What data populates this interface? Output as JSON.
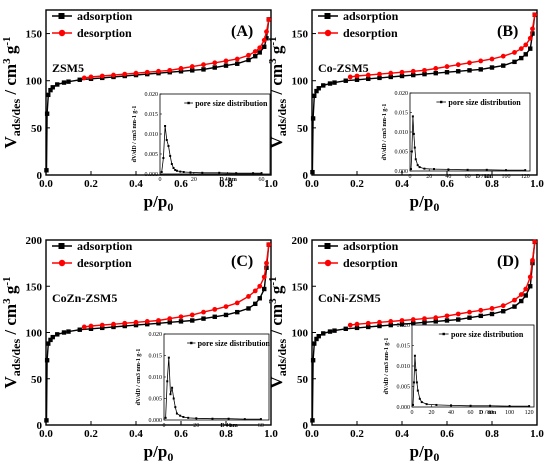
{
  "chart_data": [
    {
      "type": "line",
      "panel_label": "(A)",
      "sample": "ZSM5",
      "xlabel": "p/p0",
      "ylabel": "V ads/des / cm3 g-1",
      "xlim": [
        0,
        1.0
      ],
      "ylim": [
        0,
        175
      ],
      "xticks": [
        0.0,
        0.2,
        0.4,
        0.6,
        0.8,
        1.0
      ],
      "yticks": [
        0,
        50,
        100,
        150
      ],
      "legend": "top-left",
      "series": [
        {
          "name": "adsorption",
          "color": "#000000",
          "marker": "square",
          "x": [
            0.002,
            0.005,
            0.01,
            0.02,
            0.03,
            0.05,
            0.08,
            0.1,
            0.15,
            0.2,
            0.25,
            0.3,
            0.35,
            0.4,
            0.45,
            0.5,
            0.55,
            0.6,
            0.65,
            0.7,
            0.75,
            0.8,
            0.85,
            0.9,
            0.93,
            0.95,
            0.97,
            0.98,
            0.99
          ],
          "y": [
            5,
            65,
            85,
            90,
            93,
            96,
            98,
            99,
            101,
            102,
            103,
            104,
            105,
            106,
            107,
            108,
            109,
            110,
            111,
            112,
            114,
            116,
            118,
            122,
            126,
            130,
            136,
            145,
            165
          ]
        },
        {
          "name": "desorption",
          "color": "#ff0000",
          "marker": "circle",
          "x": [
            0.99,
            0.98,
            0.97,
            0.95,
            0.93,
            0.9,
            0.85,
            0.8,
            0.75,
            0.7,
            0.65,
            0.6,
            0.55,
            0.5,
            0.45,
            0.4,
            0.35,
            0.3,
            0.25,
            0.2,
            0.17
          ],
          "y": [
            165,
            152,
            143,
            135,
            131,
            127,
            123,
            121,
            119,
            117,
            115,
            113,
            111,
            110,
            109,
            108,
            107,
            106,
            105,
            104,
            103
          ]
        }
      ],
      "inset": {
        "legend": "pore size distribution",
        "xlabel": "D / nm",
        "ylabel": "dV/dD / cm3 nm-1 g-1",
        "xlim": [
          0,
          65
        ],
        "ylim": [
          0,
          0.02
        ],
        "xticks": [
          0,
          20,
          40,
          60
        ],
        "yticks": [
          0.0,
          0.005,
          0.01,
          0.015,
          0.02
        ],
        "x": [
          1,
          2,
          3,
          4,
          5,
          6,
          7,
          8,
          9,
          10,
          12,
          14,
          18,
          25,
          35,
          45,
          55,
          60
        ],
        "y": [
          0.0005,
          0.004,
          0.012,
          0.0085,
          0.007,
          0.0045,
          0.0025,
          0.0015,
          0.001,
          0.0008,
          0.0006,
          0.0005,
          0.0004,
          0.0003,
          0.0003,
          0.0002,
          0.0002,
          0.0002
        ]
      }
    },
    {
      "type": "line",
      "panel_label": "(B)",
      "sample": "Co-ZSM5",
      "xlabel": "p/p0",
      "ylabel": "V ads/des / cm3 g-1",
      "xlim": [
        0,
        1.0
      ],
      "ylim": [
        0,
        175
      ],
      "xticks": [
        0.0,
        0.2,
        0.4,
        0.6,
        0.8,
        1.0
      ],
      "yticks": [
        0,
        50,
        100,
        150
      ],
      "legend": "top-left",
      "series": [
        {
          "name": "adsorption",
          "color": "#000000",
          "marker": "square",
          "x": [
            0.002,
            0.005,
            0.01,
            0.02,
            0.03,
            0.05,
            0.08,
            0.1,
            0.15,
            0.2,
            0.25,
            0.3,
            0.35,
            0.4,
            0.45,
            0.5,
            0.55,
            0.6,
            0.65,
            0.7,
            0.75,
            0.8,
            0.85,
            0.9,
            0.93,
            0.95,
            0.97,
            0.98,
            0.99
          ],
          "y": [
            3,
            60,
            84,
            89,
            92,
            95,
            97,
            98,
            100,
            101,
            102,
            103,
            104,
            105,
            106,
            107,
            108,
            109,
            110,
            111,
            112,
            114,
            116,
            120,
            124,
            128,
            134,
            150,
            170
          ]
        },
        {
          "name": "desorption",
          "color": "#ff0000",
          "marker": "circle",
          "x": [
            0.99,
            0.98,
            0.97,
            0.95,
            0.93,
            0.9,
            0.85,
            0.8,
            0.75,
            0.7,
            0.65,
            0.6,
            0.55,
            0.5,
            0.45,
            0.4,
            0.35,
            0.3,
            0.25,
            0.2,
            0.17
          ],
          "y": [
            170,
            155,
            145,
            138,
            134,
            130,
            126,
            123,
            121,
            119,
            117,
            115,
            113,
            111,
            110,
            109,
            108,
            107,
            106,
            105,
            104
          ]
        }
      ],
      "inset": {
        "legend": "pore size distribution",
        "xlabel": "D / nm",
        "ylabel": "dV/dD / cm3 nm-1 g-1",
        "xlim": [
          0,
          125
        ],
        "ylim": [
          0,
          0.02
        ],
        "xticks": [
          0,
          20,
          40,
          60,
          80,
          100,
          120
        ],
        "yticks": [
          0.0,
          0.005,
          0.01,
          0.015,
          0.02
        ],
        "x": [
          1,
          2,
          3,
          4,
          5,
          6,
          8,
          10,
          15,
          25,
          40,
          60,
          80,
          100,
          120
        ],
        "y": [
          0.0005,
          0.005,
          0.014,
          0.0095,
          0.006,
          0.003,
          0.0015,
          0.001,
          0.0006,
          0.0005,
          0.0004,
          0.0003,
          0.0003,
          0.0002,
          0.0002
        ]
      }
    },
    {
      "type": "line",
      "panel_label": "(C)",
      "sample": "CoZn-ZSM5",
      "xlabel": "p/p0",
      "ylabel": "V ads/des / cm3 g-1",
      "xlim": [
        0,
        1.0
      ],
      "ylim": [
        0,
        200
      ],
      "xticks": [
        0.0,
        0.2,
        0.4,
        0.6,
        0.8,
        1.0
      ],
      "yticks": [
        0,
        50,
        100,
        150,
        200
      ],
      "legend": "top-left",
      "series": [
        {
          "name": "adsorption",
          "color": "#000000",
          "marker": "square",
          "x": [
            0.002,
            0.005,
            0.01,
            0.02,
            0.03,
            0.05,
            0.08,
            0.1,
            0.15,
            0.2,
            0.25,
            0.3,
            0.35,
            0.4,
            0.45,
            0.5,
            0.55,
            0.6,
            0.65,
            0.7,
            0.75,
            0.8,
            0.85,
            0.9,
            0.93,
            0.95,
            0.97,
            0.98,
            0.99
          ],
          "y": [
            5,
            70,
            88,
            92,
            95,
            98,
            100,
            101,
            103,
            104,
            105,
            106,
            107,
            108,
            109,
            110,
            111,
            112,
            113,
            115,
            117,
            119,
            122,
            126,
            131,
            137,
            147,
            170,
            195
          ]
        },
        {
          "name": "desorption",
          "color": "#ff0000",
          "marker": "circle",
          "x": [
            0.99,
            0.98,
            0.97,
            0.95,
            0.93,
            0.9,
            0.85,
            0.8,
            0.75,
            0.7,
            0.65,
            0.6,
            0.55,
            0.5,
            0.45,
            0.4,
            0.35,
            0.3,
            0.25,
            0.2,
            0.17
          ],
          "y": [
            195,
            175,
            160,
            150,
            145,
            139,
            132,
            128,
            125,
            122,
            119,
            117,
            115,
            113,
            112,
            111,
            110,
            109,
            108,
            107,
            106
          ]
        }
      ],
      "inset": {
        "legend": "pore size distribution",
        "xlabel": "D / nm",
        "ylabel": "dV/dD / cm3 nm-1 g-1",
        "xlim": [
          0,
          65
        ],
        "ylim": [
          0,
          0.02
        ],
        "xticks": [
          0,
          20,
          40,
          60
        ],
        "yticks": [
          0.0,
          0.005,
          0.01,
          0.015,
          0.02
        ],
        "x": [
          1,
          2,
          3,
          4,
          5,
          6,
          7,
          8,
          10,
          12,
          15,
          20,
          30,
          40,
          50,
          60
        ],
        "y": [
          0.0005,
          0.009,
          0.0145,
          0.006,
          0.0075,
          0.005,
          0.003,
          0.0015,
          0.001,
          0.0007,
          0.0005,
          0.0004,
          0.0003,
          0.0003,
          0.0002,
          0.0002
        ]
      }
    },
    {
      "type": "line",
      "panel_label": "(D)",
      "sample": "CoNi-ZSM5",
      "xlabel": "p/p0",
      "ylabel": "V ads/des / cm3 g-1",
      "xlim": [
        0,
        1.0
      ],
      "ylim": [
        0,
        200
      ],
      "xticks": [
        0.0,
        0.2,
        0.4,
        0.6,
        0.8,
        1.0
      ],
      "yticks": [
        0,
        50,
        100,
        150,
        200
      ],
      "legend": "top-left",
      "series": [
        {
          "name": "adsorption",
          "color": "#000000",
          "marker": "square",
          "x": [
            0.002,
            0.005,
            0.01,
            0.02,
            0.03,
            0.05,
            0.08,
            0.1,
            0.15,
            0.2,
            0.25,
            0.3,
            0.35,
            0.4,
            0.45,
            0.5,
            0.55,
            0.6,
            0.65,
            0.7,
            0.75,
            0.8,
            0.85,
            0.9,
            0.93,
            0.95,
            0.97,
            0.98,
            0.99
          ],
          "y": [
            5,
            70,
            88,
            93,
            96,
            99,
            101,
            102,
            104,
            105,
            106,
            107,
            108,
            109,
            110,
            111,
            112,
            113,
            114,
            116,
            118,
            120,
            123,
            128,
            134,
            140,
            150,
            175,
            198
          ]
        },
        {
          "name": "desorption",
          "color": "#ff0000",
          "marker": "circle",
          "x": [
            0.99,
            0.98,
            0.97,
            0.95,
            0.93,
            0.9,
            0.85,
            0.8,
            0.75,
            0.7,
            0.65,
            0.6,
            0.55,
            0.5,
            0.45,
            0.4,
            0.35,
            0.3,
            0.25,
            0.2,
            0.17
          ],
          "y": [
            198,
            178,
            160,
            147,
            141,
            135,
            129,
            126,
            124,
            122,
            120,
            118,
            116,
            115,
            114,
            113,
            112,
            111,
            110,
            109,
            108
          ]
        }
      ],
      "inset": {
        "legend": "pore size distribution",
        "xlabel": "D / nm",
        "ylabel": "dV/dD / cm3 nm-1 g-1",
        "xlim": [
          0,
          125
        ],
        "ylim": [
          0,
          0.02
        ],
        "xticks": [
          0,
          20,
          40,
          60,
          80,
          100,
          120
        ],
        "yticks": [
          0.0,
          0.005,
          0.01,
          0.015,
          0.02
        ],
        "x": [
          1,
          2,
          3,
          4,
          5,
          6,
          8,
          10,
          15,
          25,
          40,
          60,
          80,
          100,
          120
        ],
        "y": [
          0.0005,
          0.006,
          0.0125,
          0.009,
          0.006,
          0.004,
          0.002,
          0.0012,
          0.0007,
          0.0005,
          0.0004,
          0.0003,
          0.0003,
          0.0002,
          0.0002
        ]
      }
    }
  ]
}
